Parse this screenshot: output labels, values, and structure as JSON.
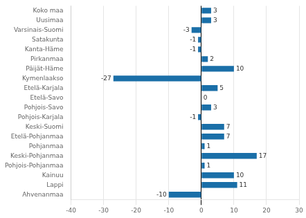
{
  "chart_data": {
    "type": "bar",
    "orientation": "horizontal",
    "categories": [
      "Koko maa",
      "Uusimaa",
      "Varsinais-Suomi",
      "Satakunta",
      "Kanta-Häme",
      "Pirkanmaa",
      "Päijät-Häme",
      "Kymenlaakso",
      "Etelä-Karjala",
      "Etelä-Savo",
      "Pohjois-Savo",
      "Pohjois-Karjala",
      "Keski-Suomi",
      "Etelä-Pohjanmaa",
      "Pohjanmaa",
      "Keski-Pohjanmaa",
      "Pohjois-Pohjanmaa",
      "Kainuu",
      "Lappi",
      "Ahvenanmaa"
    ],
    "values": [
      3,
      3,
      -3,
      -1,
      -1,
      2,
      10,
      -27,
      5,
      0,
      3,
      -1,
      7,
      7,
      1,
      17,
      1,
      10,
      11,
      -10
    ],
    "color": "#1a6fa8",
    "xlim": [
      -40,
      30
    ],
    "xticks": [
      -40,
      -30,
      -20,
      -10,
      0,
      10,
      20,
      30
    ],
    "grid": true,
    "data_labels": true
  }
}
